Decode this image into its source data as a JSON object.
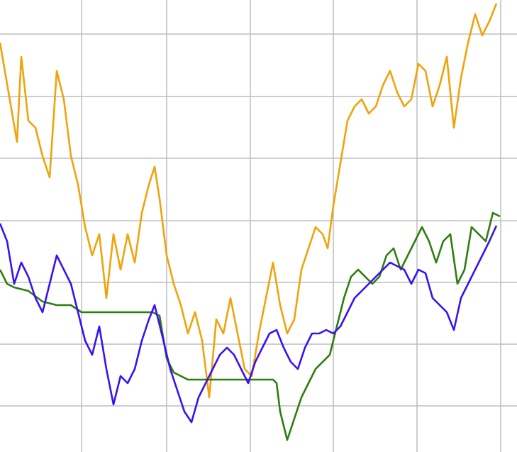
{
  "chart_data": {
    "type": "line",
    "xlim": [
      0,
      729
    ],
    "ylim": [
      0,
      637
    ],
    "xticks": [
      115,
      235,
      353,
      470,
      588,
      706
    ],
    "yticks": [
      65,
      152,
      239,
      326,
      414,
      501,
      589
    ],
    "grid": true,
    "series": [
      {
        "color": "#f0a30a",
        "x": [
          0,
          12,
          24,
          30,
          40,
          50,
          60,
          70,
          80,
          90,
          100,
          110,
          120,
          130,
          140,
          150,
          160,
          170,
          180,
          190,
          200,
          210,
          218,
          225,
          235,
          245,
          255,
          265,
          275,
          285,
          295,
          305,
          315,
          325,
          335,
          345,
          355,
          365,
          375,
          385,
          395,
          405,
          415,
          425,
          435,
          445,
          455,
          462,
          470,
          480,
          490,
          500,
          510,
          520,
          530,
          540,
          550,
          560,
          570,
          580,
          590,
          600,
          610,
          620,
          630,
          640,
          650,
          660,
          670,
          680,
          690,
          700
        ],
        "values": [
          577,
          507,
          437,
          557,
          467,
          457,
          417,
          387,
          537,
          497,
          417,
          377,
          317,
          277,
          307,
          217,
          307,
          257,
          307,
          267,
          337,
          377,
          402,
          357,
          277,
          237,
          207,
          167,
          197,
          157,
          77,
          187,
          167,
          217,
          167,
          117,
          107,
          167,
          217,
          267,
          207,
          167,
          187,
          257,
          287,
          317,
          307,
          287,
          347,
          407,
          467,
          487,
          497,
          477,
          487,
          517,
          537,
          507,
          487,
          497,
          547,
          537,
          487,
          517,
          557,
          457,
          527,
          577,
          617,
          587,
          607,
          632
        ]
      },
      {
        "color": "#2e7d0e",
        "x": [
          0,
          10,
          20,
          40,
          60,
          80,
          100,
          115,
          150,
          200,
          215,
          225,
          235,
          245,
          255,
          265,
          300,
          340,
          385,
          390,
          395,
          405,
          415,
          425,
          435,
          445,
          455,
          465,
          475,
          485,
          495,
          505,
          515,
          525,
          535,
          545,
          555,
          565,
          575,
          585,
          595,
          605,
          615,
          625,
          635,
          645,
          655,
          665,
          675,
          685,
          695,
          705
        ],
        "values": [
          257,
          237,
          232,
          227,
          212,
          207,
          207,
          197,
          197,
          197,
          197,
          192,
          132,
          112,
          107,
          102,
          102,
          102,
          102,
          97,
          57,
          17,
          47,
          77,
          97,
          117,
          127,
          137,
          177,
          217,
          247,
          257,
          247,
          237,
          247,
          277,
          287,
          257,
          277,
          297,
          317,
          297,
          267,
          297,
          307,
          237,
          257,
          317,
          307,
          297,
          337,
          332
        ]
      },
      {
        "color": "#3a12f0",
        "x": [
          0,
          10,
          20,
          30,
          40,
          50,
          60,
          70,
          80,
          90,
          100,
          110,
          120,
          130,
          140,
          150,
          160,
          170,
          180,
          190,
          200,
          210,
          218,
          228,
          240,
          250,
          260,
          270,
          280,
          290,
          300,
          310,
          320,
          330,
          340,
          350,
          360,
          370,
          380,
          390,
          400,
          410,
          420,
          430,
          440,
          450,
          460,
          470,
          480,
          490,
          500,
          510,
          520,
          530,
          540,
          550,
          560,
          570,
          580,
          590,
          600,
          610,
          620,
          630,
          640,
          650,
          660,
          670,
          680,
          690,
          700
        ],
        "values": [
          322,
          297,
          237,
          267,
          247,
          217,
          197,
          237,
          277,
          257,
          237,
          197,
          157,
          137,
          177,
          117,
          67,
          107,
          97,
          117,
          157,
          187,
          207,
          167,
          117,
          87,
          57,
          42,
          77,
          97,
          117,
          137,
          147,
          137,
          117,
          97,
          127,
          147,
          167,
          172,
          147,
          127,
          117,
          147,
          167,
          167,
          172,
          167,
          177,
          197,
          217,
          227,
          237,
          247,
          257,
          267,
          262,
          257,
          237,
          257,
          252,
          217,
          207,
          197,
          172,
          217,
          237,
          257,
          277,
          297,
          319
        ]
      }
    ]
  }
}
